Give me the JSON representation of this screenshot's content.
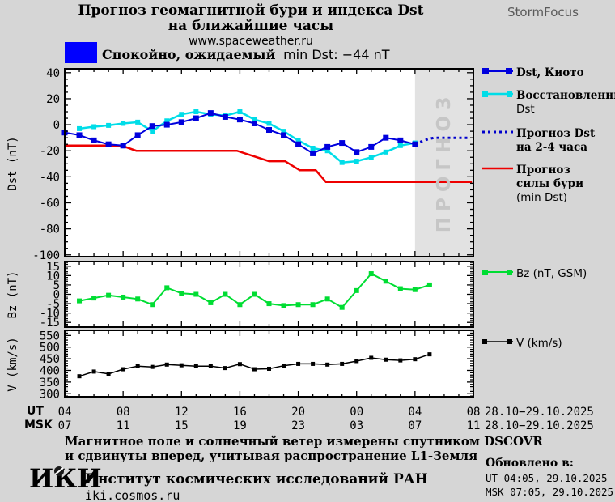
{
  "colors": {
    "background": "#d6d6d6",
    "panel": "#ffffff",
    "forecast_bg": "#e2e2e2",
    "forecast_text": "#c6c6c6",
    "status_swatch": "#0000ff",
    "brand_text": "#5a5a5a"
  },
  "header": {
    "title_line1": "Прогноз геомагнитной бури и индекса Dst",
    "title_line2": "на ближайшие часы",
    "url": "www.spaceweather.ru",
    "brand": "StormFocus"
  },
  "status": {
    "swatch_color": "#0000ff",
    "label_ru": "Спокойно, ожидаемый",
    "label_detail": "min Dst: −44 nT"
  },
  "axis": {
    "ut_label": "UT",
    "msk_label": "MSK",
    "ut_ticks": [
      "04",
      "08",
      "12",
      "16",
      "20",
      "00",
      "04",
      "08"
    ],
    "msk_ticks": [
      "07",
      "11",
      "15",
      "19",
      "23",
      "03",
      "07",
      "11"
    ],
    "ut_date": "28.10−29.10.2025",
    "msk_date": "28.10−29.10.2025"
  },
  "footer": {
    "note_line1": "Магнитное поле и солнечный ветер измерены спутником DSCOVR",
    "note_line2": "и сдвинуты вперед, учитывая распространение L1-Земля",
    "org_logo": "ИКИ",
    "org_name": "Институт космических исследований РАН",
    "org_url": "iki.cosmos.ru",
    "updated_label": "Обновлено в:",
    "updated_ut": "UT  04:05, 29.10.2025",
    "updated_msk": "MSK 07:05, 29.10.2025"
  },
  "chart_data": [
    {
      "type": "line",
      "ylabel": "Dst (nT)",
      "ylim": [
        -100,
        40
      ],
      "ytick_values": [
        40,
        20,
        0,
        -20,
        -40,
        -60,
        -80,
        -100
      ],
      "y_minor_step": 5,
      "x_axis_hours_ut": [
        4,
        32
      ],
      "x_major_ticks": [
        4,
        8,
        12,
        16,
        20,
        24,
        28,
        32
      ],
      "forecast_region": {
        "x_start": 28,
        "x_end": 32,
        "label": "ПРОГНОЗ"
      },
      "series": [
        {
          "name": "Dst, Киото",
          "legend_lines": [
            "Dst, Киото"
          ],
          "color": "#0000dd",
          "style": "solid",
          "marker": "square",
          "marker_px": 7,
          "width": 2,
          "points": [
            [
              4,
              -6
            ],
            [
              5,
              -8
            ],
            [
              6,
              -12
            ],
            [
              7,
              -15
            ],
            [
              8,
              -16
            ],
            [
              9,
              -8
            ],
            [
              10,
              -1
            ],
            [
              11,
              0
            ],
            [
              12,
              2
            ],
            [
              13,
              5
            ],
            [
              14,
              9
            ],
            [
              15,
              6
            ],
            [
              16,
              4
            ],
            [
              17,
              1
            ],
            [
              18,
              -4
            ],
            [
              19,
              -8
            ],
            [
              20,
              -15
            ],
            [
              21,
              -22
            ],
            [
              22,
              -17
            ],
            [
              23,
              -14
            ],
            [
              24,
              -21
            ],
            [
              25,
              -17
            ],
            [
              26,
              -10
            ],
            [
              27,
              -12
            ],
            [
              28,
              -15
            ]
          ]
        },
        {
          "name": "Восстановленный Dst",
          "legend_lines": [
            "Восстановленный",
            "Dst"
          ],
          "color": "#00dde8",
          "style": "solid",
          "marker": "square",
          "marker_px": 6,
          "width": 2.5,
          "points": [
            [
              5,
              -3
            ],
            [
              6,
              -1.5
            ],
            [
              7,
              -0.5
            ],
            [
              8,
              1
            ],
            [
              9,
              2
            ],
            [
              10,
              -5
            ],
            [
              11,
              3
            ],
            [
              12,
              8
            ],
            [
              13,
              10
            ],
            [
              14,
              8
            ],
            [
              15,
              7
            ],
            [
              16,
              10
            ],
            [
              17,
              4
            ],
            [
              18,
              1
            ],
            [
              19,
              -5
            ],
            [
              20,
              -12
            ],
            [
              21,
              -18
            ],
            [
              22,
              -20
            ],
            [
              23,
              -29
            ],
            [
              24,
              -28
            ],
            [
              25,
              -25
            ],
            [
              26,
              -21
            ],
            [
              27,
              -16
            ],
            [
              28,
              -14
            ]
          ]
        },
        {
          "name": "Прогноз Dst на 2-4 часа",
          "legend_lines": [
            "Прогноз Dst",
            "на 2-4 часа"
          ],
          "color": "#0000cc",
          "style": "dotted",
          "marker": "none",
          "marker_px": 0,
          "width": 3,
          "points": [
            [
              28,
              -15
            ],
            [
              28.4,
              -13
            ],
            [
              28.9,
              -11
            ],
            [
              29.3,
              -10
            ],
            [
              31.6,
              -10
            ]
          ]
        },
        {
          "name": "Прогноз силы бури (min Dst)",
          "legend_lines": [
            "Прогноз",
            "силы бури",
            "(min Dst)"
          ],
          "color": "#ee0000",
          "style": "solid",
          "marker": "none",
          "marker_px": 0,
          "width": 2.5,
          "points": [
            [
              4,
              -16
            ],
            [
              7.9,
              -16
            ],
            [
              8.9,
              -20
            ],
            [
              15.8,
              -20
            ],
            [
              18,
              -28
            ],
            [
              19.1,
              -28
            ],
            [
              20.1,
              -35
            ],
            [
              21.2,
              -35
            ],
            [
              21.9,
              -44
            ],
            [
              31.9,
              -44
            ]
          ]
        }
      ]
    },
    {
      "type": "line",
      "ylabel": "Bz (nT)",
      "ylim": [
        -15,
        15
      ],
      "ytick_values": [
        15,
        10,
        5,
        0,
        -5,
        -10,
        -15
      ],
      "y_minor_step": 1,
      "series": [
        {
          "name": "Bz (nT, GSM)",
          "legend_lines": [
            "Bz (nT, GSM)"
          ],
          "color": "#00dd33",
          "style": "solid",
          "marker": "square",
          "marker_px": 6,
          "width": 2,
          "points": [
            [
              5,
              -3.5
            ],
            [
              6,
              -2
            ],
            [
              7,
              -0.5
            ],
            [
              8,
              -1.5
            ],
            [
              9,
              -2.5
            ],
            [
              10,
              -5.5
            ],
            [
              11,
              3.5
            ],
            [
              12,
              0.5
            ],
            [
              13,
              0
            ],
            [
              14,
              -4.5
            ],
            [
              15,
              0
            ],
            [
              16,
              -5.5
            ],
            [
              17,
              0
            ],
            [
              18,
              -5
            ],
            [
              19,
              -6
            ],
            [
              20,
              -5.5
            ],
            [
              21,
              -5.5
            ],
            [
              22,
              -2.5
            ],
            [
              23,
              -7
            ],
            [
              24,
              2
            ],
            [
              25,
              11
            ],
            [
              26,
              7
            ],
            [
              27,
              3
            ],
            [
              28,
              2.5
            ],
            [
              29,
              5
            ]
          ]
        }
      ]
    },
    {
      "type": "line",
      "ylabel": "V (km/s)",
      "ylim": [
        300,
        550
      ],
      "ytick_values": [
        550,
        500,
        450,
        400,
        350,
        300
      ],
      "y_minor_step": 10,
      "series": [
        {
          "name": "V (km/s)",
          "legend_lines": [
            "V (km/s)"
          ],
          "color": "#000000",
          "style": "solid",
          "marker": "square",
          "marker_px": 5,
          "width": 1.5,
          "points": [
            [
              5,
              375
            ],
            [
              6,
              395
            ],
            [
              7,
              385
            ],
            [
              8,
              405
            ],
            [
              9,
              418
            ],
            [
              10,
              415
            ],
            [
              11,
              425
            ],
            [
              12,
              422
            ],
            [
              13,
              418
            ],
            [
              14,
              418
            ],
            [
              15,
              410
            ],
            [
              16,
              427
            ],
            [
              17,
              405
            ],
            [
              18,
              407
            ],
            [
              19,
              420
            ],
            [
              20,
              428
            ],
            [
              21,
              428
            ],
            [
              22,
              425
            ],
            [
              23,
              428
            ],
            [
              24,
              440
            ],
            [
              25,
              454
            ],
            [
              26,
              446
            ],
            [
              27,
              443
            ],
            [
              28,
              448
            ],
            [
              29,
              469
            ]
          ]
        }
      ]
    }
  ]
}
